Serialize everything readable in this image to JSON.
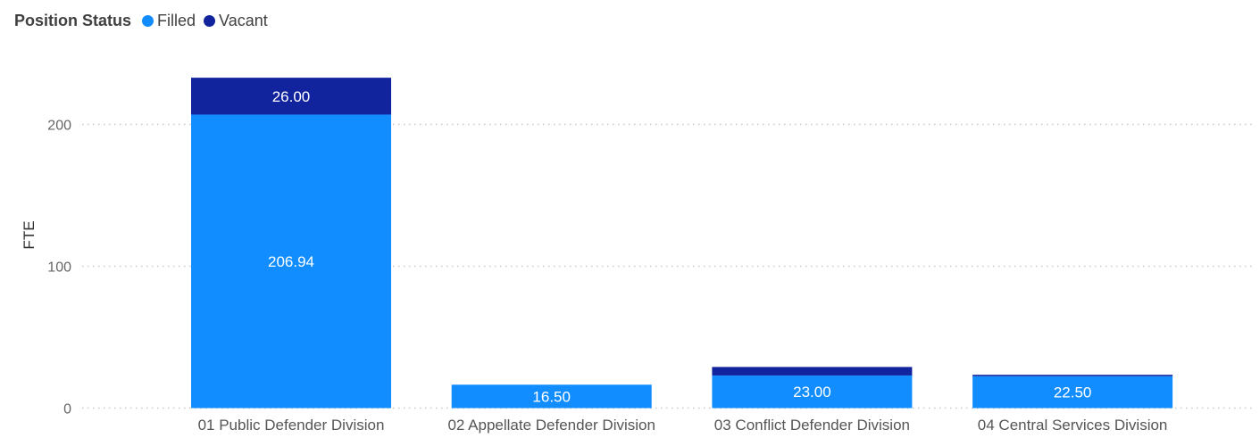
{
  "legend": {
    "title": "Position Status",
    "items": [
      {
        "label": "Filled",
        "color": "#118DFF"
      },
      {
        "label": "Vacant",
        "color": "#12239E"
      }
    ]
  },
  "chart_data": {
    "type": "bar",
    "stacked": true,
    "orientation": "vertical",
    "categories": [
      "01 Public Defender Division",
      "02 Appellate Defender Division",
      "03 Conflict Defender Division",
      "04 Central Services Division"
    ],
    "series": [
      {
        "name": "Filled",
        "color": "#118DFF",
        "values": [
          206.94,
          16.5,
          23.0,
          22.5
        ],
        "labels": [
          "206.94",
          "16.50",
          "23.00",
          "22.50"
        ]
      },
      {
        "name": "Vacant",
        "color": "#12239E",
        "values": [
          26.0,
          0,
          6.0,
          1.0
        ],
        "labels": [
          "26.00",
          "",
          "",
          ""
        ]
      }
    ],
    "xlabel": "",
    "ylabel": "FTE",
    "ylim": [
      0,
      240
    ],
    "yticks": [
      0,
      100,
      200
    ],
    "grid": true,
    "legend_position": "top-left"
  }
}
